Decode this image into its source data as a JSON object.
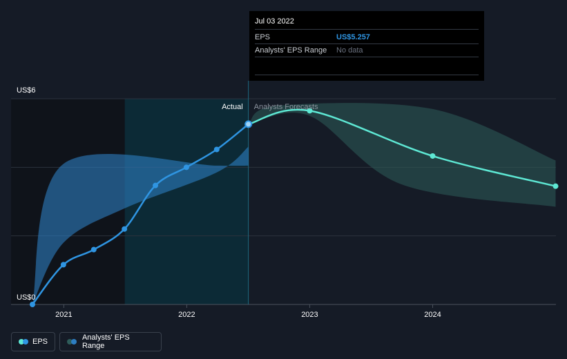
{
  "chart_data": {
    "type": "line",
    "title": "",
    "xlabel": "",
    "ylabel": "",
    "y_tick_labels": [
      "US$0",
      "US$6"
    ],
    "ylim": [
      0,
      6
    ],
    "xlim": [
      "2020-09-30",
      "2025-01-01"
    ],
    "x_ticks": [
      {
        "date": "2021-01-01",
        "label": "2021"
      },
      {
        "date": "2022-01-01",
        "label": "2022"
      },
      {
        "date": "2023-01-01",
        "label": "2023"
      },
      {
        "date": "2024-01-01",
        "label": "2024"
      }
    ],
    "actual_divider_date": "2022-07-03",
    "highlight_start_date": "2021-07-01",
    "section_labels": {
      "actual": "Actual",
      "forecast": "Analysts Forecasts"
    },
    "series": [
      {
        "name": "EPS",
        "kind": "actual",
        "color": "#2f95e2",
        "points": [
          {
            "date": "2020-09-30",
            "value": 0.0
          },
          {
            "date": "2020-12-31",
            "value": 1.16
          },
          {
            "date": "2021-03-31",
            "value": 1.6
          },
          {
            "date": "2021-06-30",
            "value": 2.2
          },
          {
            "date": "2021-09-30",
            "value": 3.47
          },
          {
            "date": "2021-12-31",
            "value": 4.0
          },
          {
            "date": "2022-03-31",
            "value": 4.52
          },
          {
            "date": "2022-07-03",
            "value": 5.257
          }
        ]
      },
      {
        "name": "EPS forecast",
        "kind": "forecast",
        "color": "#5ee8d4",
        "points": [
          {
            "date": "2022-07-03",
            "value": 5.257
          },
          {
            "date": "2023-01-01",
            "value": 5.65
          },
          {
            "date": "2024-01-01",
            "value": 4.33
          },
          {
            "date": "2024-12-31",
            "value": 3.45
          }
        ]
      },
      {
        "name": "Analysts' EPS Range (past)",
        "kind": "range_past",
        "color": "#2d7ec2",
        "upper": [
          {
            "date": "2020-09-30",
            "value": 0.0
          },
          {
            "date": "2020-12-31",
            "value": 4.1
          },
          {
            "date": "2022-03-31",
            "value": 4.05
          },
          {
            "date": "2022-07-03",
            "value": 4.05
          }
        ],
        "lower": [
          {
            "date": "2020-09-30",
            "value": 0.0
          },
          {
            "date": "2020-12-31",
            "value": 1.8
          },
          {
            "date": "2021-06-30",
            "value": 2.8
          },
          {
            "date": "2022-03-31",
            "value": 3.85
          },
          {
            "date": "2022-07-03",
            "value": 4.6
          }
        ]
      },
      {
        "name": "Analysts' EPS Range (forecast)",
        "kind": "range_forecast",
        "color": "#2e5c5a",
        "upper": [
          {
            "date": "2022-07-03",
            "value": 5.257
          },
          {
            "date": "2022-10-01",
            "value": 5.8
          },
          {
            "date": "2024-01-01",
            "value": 5.7
          },
          {
            "date": "2024-12-31",
            "value": 4.2
          }
        ],
        "lower": [
          {
            "date": "2022-07-03",
            "value": 5.257
          },
          {
            "date": "2023-01-01",
            "value": 5.5
          },
          {
            "date": "2023-10-01",
            "value": 3.5
          },
          {
            "date": "2024-12-31",
            "value": 2.85
          }
        ]
      }
    ]
  },
  "tooltip": {
    "date": "Jul 03 2022",
    "eps_label": "EPS",
    "eps_value": "US$5.257",
    "range_label": "Analysts' EPS Range",
    "range_value": "No data"
  },
  "legend": {
    "eps_label": "EPS",
    "range_label": "Analysts' EPS Range",
    "eps_colors": [
      "#5ee8d4",
      "#2f95e2"
    ],
    "range_colors": [
      "#2e5c5a",
      "#2d7ec2"
    ]
  }
}
